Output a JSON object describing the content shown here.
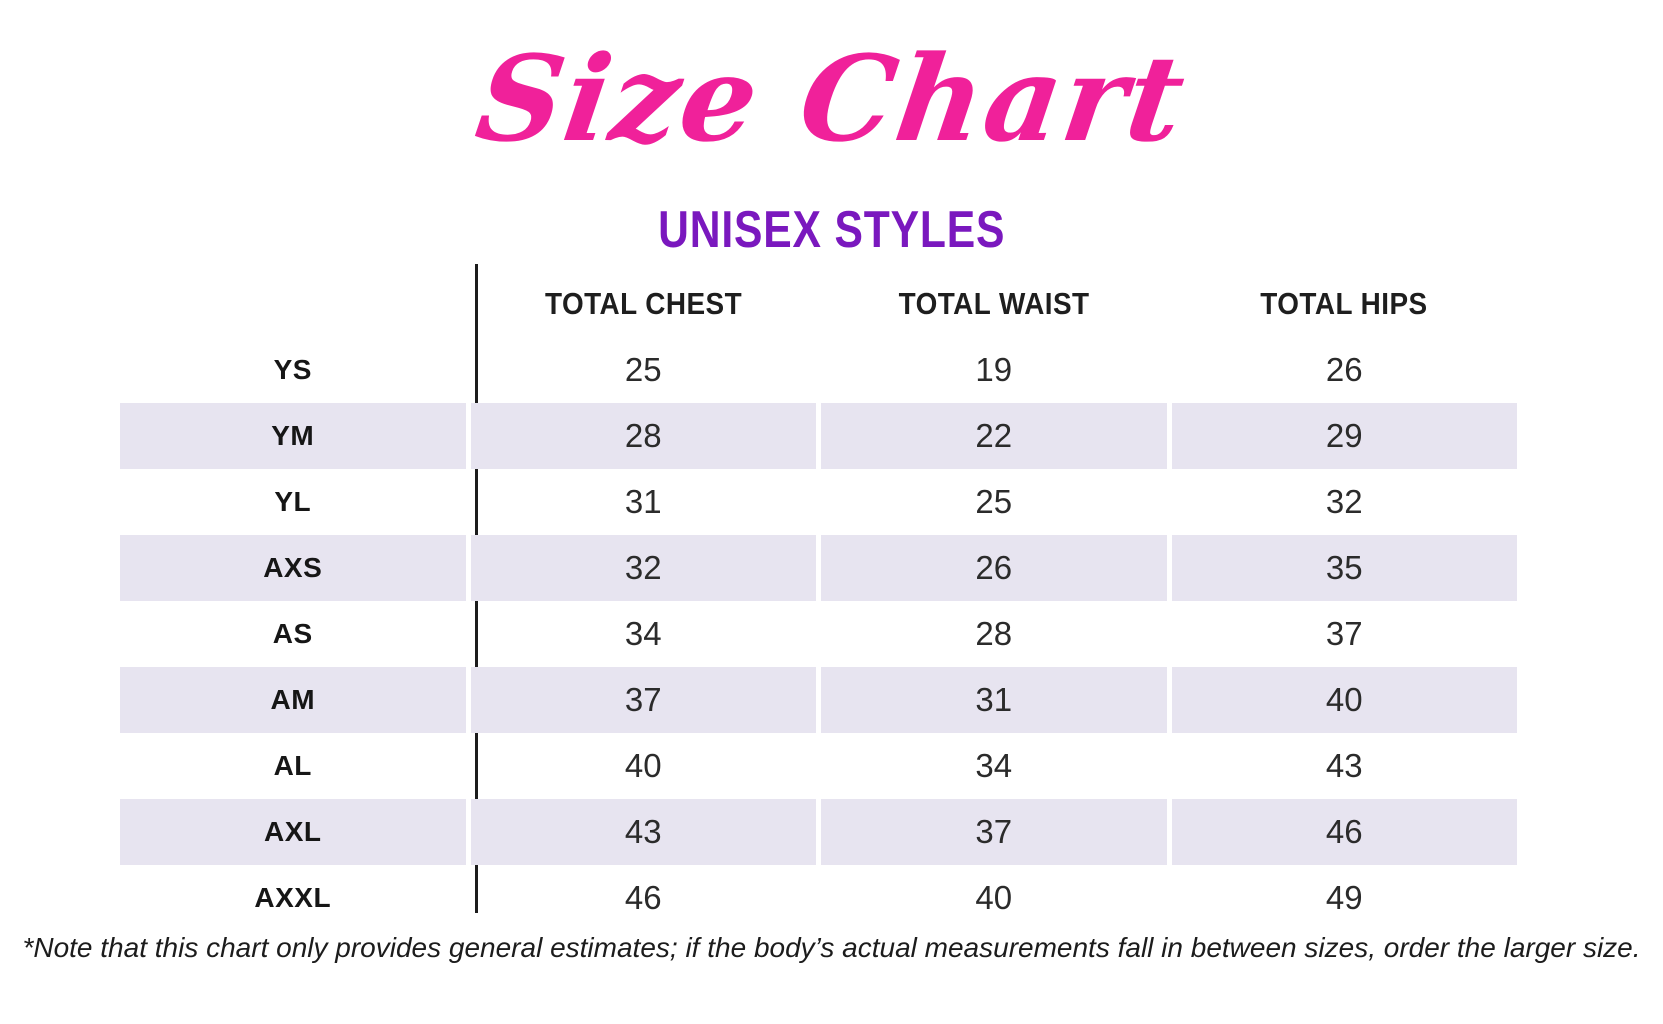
{
  "page": {
    "title": "Size Chart",
    "subtitle": "UNISEX STYLES",
    "footnote": "*Note that this chart only provides general estimates; if the body’s actual measurements fall in between sizes, order the larger size."
  },
  "colors": {
    "title_pink": "#f0219a",
    "subtitle_purple": "#7a18be",
    "shaded_row": "#e7e4f0",
    "text_dark": "#1c1c1c"
  },
  "chart_data": {
    "type": "table",
    "title": "Size Chart",
    "subtitle": "UNISEX STYLES",
    "columns": [
      "",
      "TOTAL CHEST",
      "TOTAL WAIST",
      "TOTAL HIPS"
    ],
    "rows": [
      {
        "size": "YS",
        "total_chest": "25",
        "total_waist": "19",
        "total_hips": "26"
      },
      {
        "size": "YM",
        "total_chest": "28",
        "total_waist": "22",
        "total_hips": "29"
      },
      {
        "size": "YL",
        "total_chest": "31",
        "total_waist": "25",
        "total_hips": "32"
      },
      {
        "size": "AXS",
        "total_chest": "32",
        "total_waist": "26",
        "total_hips": "35"
      },
      {
        "size": "AS",
        "total_chest": "34",
        "total_waist": "28",
        "total_hips": "37"
      },
      {
        "size": "AM",
        "total_chest": "37",
        "total_waist": "31",
        "total_hips": "40"
      },
      {
        "size": "AL",
        "total_chest": "40",
        "total_waist": "34",
        "total_hips": "43"
      },
      {
        "size": "AXL",
        "total_chest": "43",
        "total_waist": "37",
        "total_hips": "46"
      },
      {
        "size": "AXXL",
        "total_chest": "46",
        "total_waist": "40",
        "total_hips": "49"
      }
    ],
    "layout": {
      "row_striping": "alternate rows shaded starting with second row",
      "alignment": "all cells centered",
      "divider": "vertical black line between size column and measurement columns"
    }
  }
}
